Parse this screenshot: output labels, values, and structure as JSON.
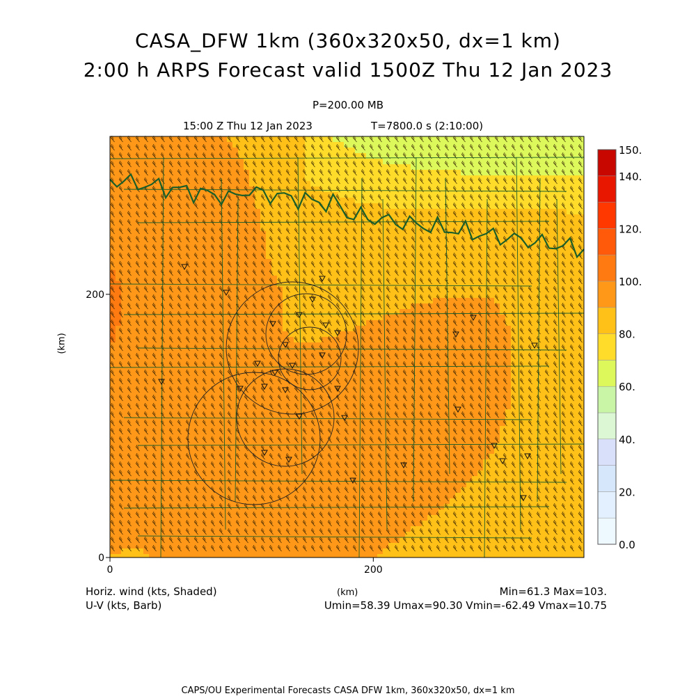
{
  "header": {
    "title_line1": "CASA_DFW 1km (360x320x50, dx=1 km)",
    "title_line2": "2:00 h ARPS Forecast valid 1500Z Thu 12 Jan 2023",
    "level": "P=200.00 MB",
    "valid_time": "15:00 Z Thu 12 Jan 2023",
    "model_time": "T=7800.0 s (2:10:00)"
  },
  "axes": {
    "x_label": "(km)",
    "y_label": "(km)",
    "x_ticks": [
      "0",
      "200"
    ],
    "y_ticks": [
      "0",
      "200"
    ]
  },
  "colorbar": {
    "labels": [
      "150.",
      "140.",
      "120.",
      "100.",
      "80.",
      "60.",
      "40.",
      "20.",
      "0.0"
    ],
    "levels": [
      {
        "value": 0,
        "color": "#eef8ff"
      },
      {
        "value": 10,
        "color": "#e2f0ff"
      },
      {
        "value": 20,
        "color": "#d6e6fb"
      },
      {
        "value": 30,
        "color": "#d8e0fa"
      },
      {
        "value": 40,
        "color": "#dcf7d4"
      },
      {
        "value": 50,
        "color": "#c8f5a6"
      },
      {
        "value": 60,
        "color": "#ddf85a"
      },
      {
        "value": 70,
        "color": "#ffdc2a"
      },
      {
        "value": 80,
        "color": "#ffc018"
      },
      {
        "value": 90,
        "color": "#ff9818"
      },
      {
        "value": 100,
        "color": "#ff7a10"
      },
      {
        "value": 110,
        "color": "#ff5a0a"
      },
      {
        "value": 120,
        "color": "#ff3800"
      },
      {
        "value": 130,
        "color": "#e81800"
      },
      {
        "value": 140,
        "color": "#c80800"
      },
      {
        "value": 150,
        "color": "#b00000"
      }
    ]
  },
  "footer": {
    "field_label": "Horiz. wind (kts, Shaded)",
    "vector_label": "U-V (kts, Barb)",
    "x_unit": "(km)",
    "minmax": "Min=61.3 Max=103.",
    "uv_stats": "Umin=58.39 Umax=90.30 Vmin=-62.49 Vmax=10.75",
    "credit": "CAPS/OU Experimental Forecasts  CASA DFW 1km, 360x320x50, dx=1 km"
  },
  "colors": {
    "map_lines": "#1a5e2a",
    "frame": "#000000"
  }
}
